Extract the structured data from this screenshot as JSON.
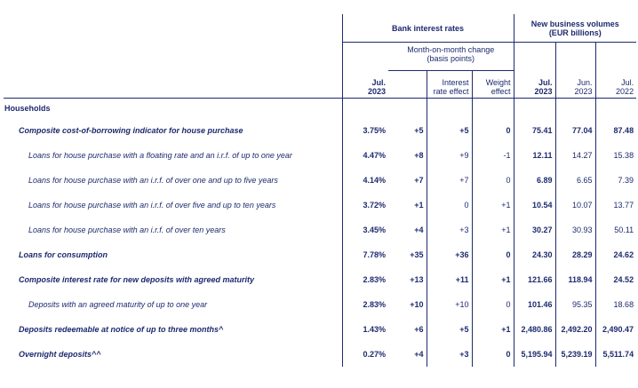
{
  "header": {
    "bank_rates": "Bank interest rates",
    "new_business_line1": "New business volumes",
    "new_business_line2": "(EUR billions)",
    "mom_line1": "Month-on-month change",
    "mom_line2": "(basis points)",
    "interest_line1": "Interest",
    "interest_line2": "rate effect",
    "weight_line1": "Weight",
    "weight_line2": "effect",
    "rate_month": "Jul.",
    "rate_year": "2023",
    "vol_cols": [
      {
        "month": "Jul.",
        "year": "2023"
      },
      {
        "month": "Jun.",
        "year": "2023"
      },
      {
        "month": "Jul.",
        "year": "2022"
      }
    ]
  },
  "section": {
    "label": "Households"
  },
  "rows": [
    {
      "label": "Composite cost-of-borrowing indicator for house purchase",
      "rate": "3.75%",
      "mom": "+5",
      "ir": "+5",
      "we": "0",
      "v1": "75.41",
      "v2": "77.04",
      "v3": "87.48"
    },
    {
      "label": "Loans for house purchase with a floating rate and an i.r.f. of up to one year",
      "rate": "4.47%",
      "mom": "+8",
      "ir": "+9",
      "we": "-1",
      "v1": "12.11",
      "v2": "14.27",
      "v3": "15.38"
    },
    {
      "label": "Loans for house purchase with an i.r.f. of over one and up to five years",
      "rate": "4.14%",
      "mom": "+7",
      "ir": "+7",
      "we": "0",
      "v1": "6.89",
      "v2": "6.65",
      "v3": "7.39"
    },
    {
      "label": "Loans for house purchase with an i.r.f. of over five and up to ten years",
      "rate": "3.72%",
      "mom": "+1",
      "ir": "0",
      "we": "+1",
      "v1": "10.54",
      "v2": "10.07",
      "v3": "13.77"
    },
    {
      "label": "Loans for house purchase with an i.r.f. of over ten years",
      "rate": "3.45%",
      "mom": "+4",
      "ir": "+3",
      "we": "+1",
      "v1": "30.27",
      "v2": "30.93",
      "v3": "50.11"
    },
    {
      "label": "Loans for consumption",
      "rate": "7.78%",
      "mom": "+35",
      "ir": "+36",
      "we": "0",
      "v1": "24.30",
      "v2": "28.29",
      "v3": "24.62"
    },
    {
      "label": "Composite interest rate for new deposits with agreed maturity",
      "rate": "2.83%",
      "mom": "+13",
      "ir": "+11",
      "we": "+1",
      "v1": "121.66",
      "v2": "118.94",
      "v3": "24.52"
    },
    {
      "label": "Deposits with an agreed maturity of up to one year",
      "rate": "2.83%",
      "mom": "+10",
      "ir": "+10",
      "we": "0",
      "v1": "101.46",
      "v2": "95.35",
      "v3": "18.68"
    },
    {
      "label": "Deposits redeemable at notice of up to three months^",
      "rate": "1.43%",
      "mom": "+6",
      "ir": "+5",
      "we": "+1",
      "v1": "2,480.86",
      "v2": "2,492.20",
      "v3": "2,490.47"
    },
    {
      "label": "Overnight deposits^^",
      "rate": "0.27%",
      "mom": "+4",
      "ir": "+3",
      "we": "0",
      "v1": "5,195.94",
      "v2": "5,239.19",
      "v3": "5,511.74"
    }
  ]
}
